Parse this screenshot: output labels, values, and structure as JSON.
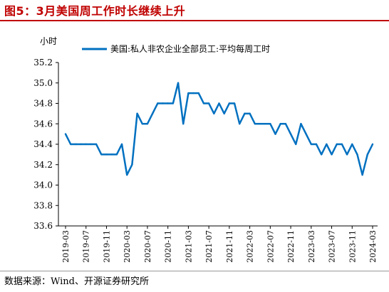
{
  "header": {
    "title": "图5：3月美国周工作时长继续上升"
  },
  "footer": {
    "source": "数据来源：Wind、开源证券研究所"
  },
  "chart_data": {
    "type": "line",
    "ylabel": "小时",
    "ylim": [
      33.6,
      35.2
    ],
    "yticks": [
      "33.6",
      "33.8",
      "34.0",
      "34.2",
      "34.4",
      "34.6",
      "34.8",
      "35.0",
      "35.2"
    ],
    "xticks": [
      "2019-03",
      "2019-07",
      "2019-11",
      "2020-03",
      "2020-07",
      "2020-11",
      "2021-03",
      "2021-07",
      "2021-11",
      "2022-03",
      "2022-07",
      "2022-11",
      "2023-03",
      "2023-07",
      "2023-11",
      "2024-03"
    ],
    "legend_position": "top",
    "grid": false,
    "series": [
      {
        "name": "美国:私人非农企业全部员工:平均每周工时",
        "color": "#0070c0",
        "start": "2019-03",
        "values": [
          34.5,
          34.4,
          34.4,
          34.4,
          34.4,
          34.4,
          34.4,
          34.3,
          34.3,
          34.3,
          34.3,
          34.4,
          34.1,
          34.2,
          34.7,
          34.6,
          34.6,
          34.7,
          34.8,
          34.8,
          34.8,
          34.8,
          35.0,
          34.6,
          34.9,
          34.9,
          34.9,
          34.8,
          34.8,
          34.7,
          34.8,
          34.7,
          34.8,
          34.8,
          34.6,
          34.7,
          34.7,
          34.6,
          34.6,
          34.6,
          34.6,
          34.5,
          34.6,
          34.6,
          34.5,
          34.4,
          34.6,
          34.5,
          34.4,
          34.4,
          34.3,
          34.4,
          34.3,
          34.4,
          34.4,
          34.3,
          34.4,
          34.3,
          34.1,
          34.3,
          34.4
        ]
      }
    ]
  }
}
